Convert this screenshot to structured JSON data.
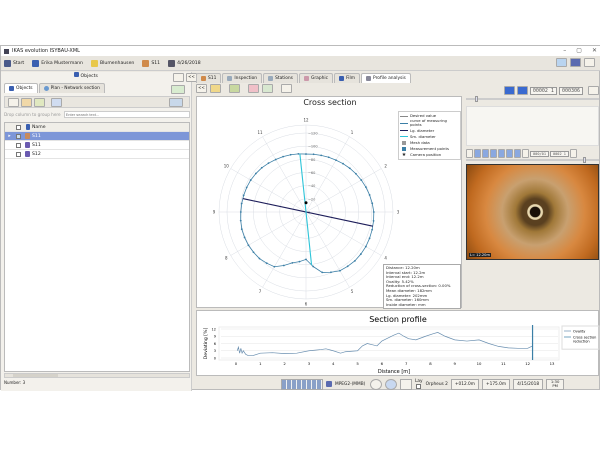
{
  "window": {
    "title": "IKAS evolution  ISYBAU-XML",
    "controls": [
      "–",
      "▢",
      "✕"
    ]
  },
  "toolbar": {
    "items": [
      {
        "label": "Start",
        "icon": "start-icon",
        "color": "#4a5a8a"
      },
      {
        "label": "Erika Mustermann",
        "icon": "user-icon",
        "color": "#3a5fb0"
      },
      {
        "label": "Blumenhausen",
        "icon": "folder-icon",
        "color": "#e8c84a"
      },
      {
        "label": "S11",
        "icon": "pipe-icon",
        "color": "#d08a4a"
      },
      {
        "label": "4/26/2018",
        "icon": "gear-icon",
        "color": "#556"
      }
    ]
  },
  "left": {
    "header": "Objects",
    "tabs": [
      "Objects",
      "Plan - Network section"
    ],
    "group_hint": "Drop column to group here",
    "search_placeholder": "Enter search text...",
    "column_name": "Name",
    "rows": [
      {
        "name": "S11",
        "selected": true,
        "checked": true,
        "icon": "pipe-icon"
      },
      {
        "name": "S11",
        "selected": false,
        "checked": false,
        "icon": "manhole-icon"
      },
      {
        "name": "S12",
        "selected": false,
        "checked": false,
        "icon": "manhole-icon"
      }
    ],
    "footer": "Number: 3",
    "nav": "<<"
  },
  "main": {
    "tabs": [
      "S11",
      "Inspection",
      "Stations",
      "Graphic",
      "Film",
      "Profile analysis"
    ],
    "active_tab": 5,
    "back": "<<"
  },
  "video": {
    "counter1": "00002 1",
    "counter2": "000306",
    "counter3": "000/01",
    "counter4": "0002 1",
    "overlay": "L= 12.20m",
    "slider_top": 0.07,
    "slider_mid": 0.9
  },
  "cross_section": {
    "title": "Cross section",
    "clock_labels": [
      "12",
      "1",
      "2",
      "3",
      "4",
      "5",
      "6",
      "7",
      "8",
      "9",
      "10",
      "11"
    ],
    "radial_ticks": [
      0,
      20,
      40,
      60,
      80,
      100,
      120
    ],
    "rmax": 120,
    "profile_radii_deg15": [
      88,
      89,
      91,
      94,
      97,
      100,
      103,
      104,
      105,
      105,
      103,
      95,
      72,
      80,
      96,
      100,
      101,
      101,
      99,
      98,
      97,
      95,
      92,
      90
    ],
    "long_diameter_angle_deg": 102,
    "short_diameter_angle_deg": -6,
    "camera_offset": 14,
    "legend": [
      "Desired value",
      "curve of measuring points",
      "Lg. diameter",
      "Sm. diameter",
      "Mesh data",
      "Measurement points",
      "Camera position"
    ],
    "colors": {
      "curve": "#3b7fa6",
      "long": "#1e1e5a",
      "short": "#2ec4d8",
      "grid": "#d9dde4"
    },
    "info": [
      "Distance: 12.20m",
      "Interval start: 12.2m",
      "Interval end: 12.2m",
      "Ovality: 5.42%",
      "Reduction of cross-section: 0.00%",
      "Mean diameter: 182mm",
      "Lg. diameter: 202mm",
      "Sm. diameter: 160mm",
      "Inside diameter: mm"
    ]
  },
  "chart_data": {
    "type": "line",
    "title": "Section profile",
    "xlabel": "Distance [m]",
    "ylabel": "Deviating [%]",
    "xlim": [
      0,
      13
    ],
    "ylim": [
      0,
      12
    ],
    "xticks": [
      0,
      1,
      2,
      3,
      4,
      5,
      6,
      7,
      8,
      9,
      10,
      11,
      12,
      13
    ],
    "yticks": [
      0,
      3,
      6,
      9,
      12
    ],
    "grid": true,
    "legend_position": "right",
    "series": [
      {
        "name": "Ovality",
        "color": "#6a8fb0",
        "x": [
          0.05,
          0.1,
          0.15,
          0.2,
          0.25,
          0.3,
          0.4,
          0.5,
          0.7,
          1,
          1.5,
          2,
          2.5,
          3,
          3.5,
          3.7,
          4,
          4.3,
          4.5,
          5,
          5.2,
          5.4,
          5.6,
          5.8,
          6,
          6.3,
          6.5,
          6.7,
          6.9,
          7.1,
          7.4,
          7.8,
          8.1,
          8.3,
          8.6,
          9,
          9.5,
          10,
          10.4,
          10.8,
          11.2,
          11.6,
          12,
          12.2
        ],
        "y": [
          3,
          4.5,
          2,
          4,
          2,
          3,
          1.5,
          1,
          1,
          2,
          2.2,
          1.8,
          2,
          3,
          3.5,
          3.8,
          3,
          2,
          2.6,
          3,
          5,
          6,
          5.5,
          5,
          7,
          8.5,
          9.5,
          10.3,
          9,
          8,
          7.5,
          9,
          10,
          10.6,
          9,
          7.5,
          7,
          7.5,
          6,
          4.8,
          4.2,
          4,
          4,
          5
        ]
      },
      {
        "name": "Cross section reduction",
        "color": "#3b7fa6",
        "x": [],
        "y": []
      }
    ],
    "cursor_x": 12.2
  },
  "status": {
    "codec": "MPEG2-(MMB)",
    "lay_label": "Lay",
    "device": "Orpheus 2",
    "pos1": "+012.0m",
    "pos2": "+175.0m",
    "date": "4/15/2018",
    "time": "1:30 PM"
  }
}
